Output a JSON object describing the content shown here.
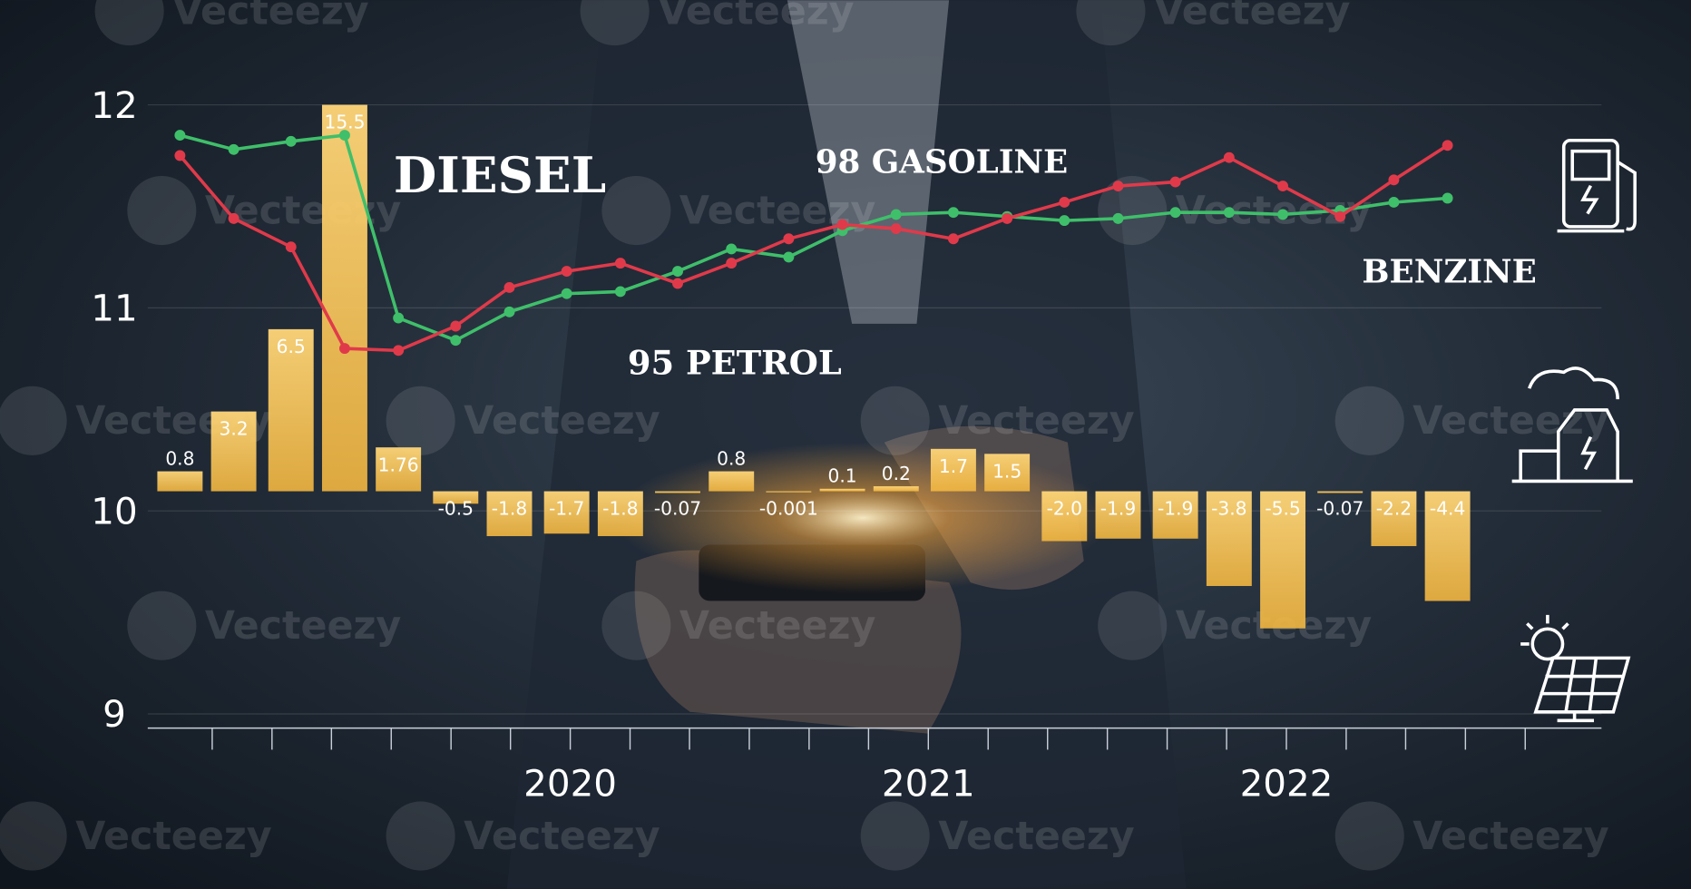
{
  "chart_data": {
    "type": "combo",
    "watermark": "Vecteezy",
    "annotations": [
      "DIESEL",
      "98 GASOLINE",
      "95 PETROL",
      "BENZINE"
    ],
    "x": [
      2018.91,
      2019.06,
      2019.22,
      2019.37,
      2019.52,
      2019.68,
      2019.83,
      2019.99,
      2020.14,
      2020.3,
      2020.45,
      2020.61,
      2020.76,
      2020.91,
      2021.07,
      2021.22,
      2021.38,
      2021.53,
      2021.69,
      2021.84,
      2021.99,
      2022.15,
      2022.3,
      2022.45
    ],
    "xlim": [
      2018.82,
      2022.88
    ],
    "xticks": [
      2020,
      2021,
      2022
    ],
    "minor_xticks": [
      2019,
      2019.167,
      2019.333,
      2019.5,
      2019.667,
      2019.833,
      2020,
      2020.167,
      2020.333,
      2020.5,
      2020.667,
      2020.833,
      2021,
      2021.167,
      2021.333,
      2021.5,
      2021.667,
      2021.833,
      2022,
      2022.167,
      2022.333,
      2022.5,
      2022.667
    ],
    "ylim": [
      8.93,
      12
    ],
    "yticks": [
      9,
      10,
      11,
      12
    ],
    "y2lim": [
      -9.5,
      15.5
    ],
    "grid": true,
    "series": [
      {
        "type": "bar",
        "axis": "y2",
        "color": "#f7c552",
        "values": [
          0.8,
          3.2,
          6.5,
          15.5,
          1.76,
          -0.5,
          -1.8,
          -1.7,
          -1.8,
          -0.07,
          0.8,
          -0.001,
          0.1,
          0.2,
          1.7,
          1.5,
          -2.0,
          -1.9,
          -1.9,
          -3.8,
          -5.5,
          -0.07,
          -2.2,
          -4.4
        ],
        "value_labels": [
          "0.8",
          "3.2",
          "6.5",
          "15.5",
          "1.76",
          "-0.5",
          "-1.8",
          "-1.7",
          "-1.8",
          "-0.07",
          "0.8",
          "-0.001",
          "0.1",
          "0.2",
          "1.7",
          "1.5",
          "-2.0",
          "-1.9",
          "-1.9",
          "-3.8",
          "-5.5",
          "-0.07",
          "-2.2",
          "-4.4"
        ]
      },
      {
        "type": "line",
        "color": "#3fbf6a",
        "values": [
          11.85,
          11.78,
          11.82,
          11.85,
          10.95,
          10.84,
          10.98,
          11.07,
          11.08,
          11.18,
          11.29,
          11.25,
          11.38,
          11.46,
          11.47,
          11.45,
          11.43,
          11.44,
          11.47,
          11.47,
          11.46,
          11.48,
          11.52,
          11.54
        ]
      },
      {
        "type": "line",
        "color": "#e03a4a",
        "values": [
          11.75,
          11.44,
          11.3,
          10.8,
          10.79,
          10.91,
          11.1,
          11.18,
          11.22,
          11.12,
          11.22,
          11.34,
          11.41,
          11.39,
          11.34,
          11.44,
          11.52,
          11.6,
          11.62,
          11.74,
          11.6,
          11.45,
          11.63,
          11.8
        ]
      }
    ]
  }
}
